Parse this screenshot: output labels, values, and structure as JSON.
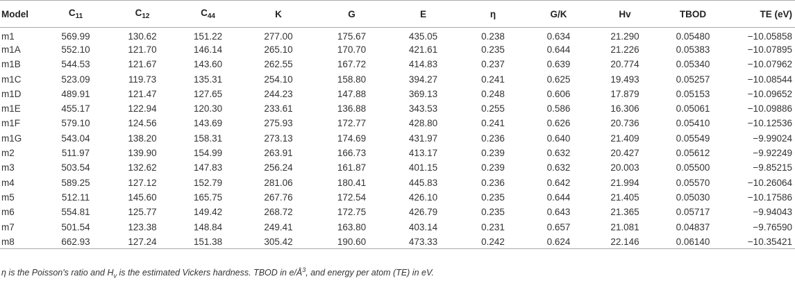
{
  "table": {
    "headers": [
      {
        "main": "Model",
        "sub": ""
      },
      {
        "main": "C",
        "sub": "11"
      },
      {
        "main": "C",
        "sub": "12"
      },
      {
        "main": "C",
        "sub": "44"
      },
      {
        "main": "K",
        "sub": ""
      },
      {
        "main": "G",
        "sub": ""
      },
      {
        "main": "E",
        "sub": ""
      },
      {
        "main": "η",
        "sub": ""
      },
      {
        "main": "G/K",
        "sub": ""
      },
      {
        "main": "Hv",
        "sub": ""
      },
      {
        "main": "TBOD",
        "sub": ""
      },
      {
        "main": "TE (eV)",
        "sub": ""
      }
    ],
    "rows": [
      [
        "m1",
        "569.99",
        "130.62",
        "151.22",
        "277.00",
        "175.67",
        "435.05",
        "0.238",
        "0.634",
        "21.290",
        "0.05480",
        "−10.05858"
      ],
      [
        "m1A",
        "552.10",
        "121.70",
        "146.14",
        "265.10",
        "170.70",
        "421.61",
        "0.235",
        "0.644",
        "21.226",
        "0.05383",
        "−10.07895"
      ],
      [
        "m1B",
        "544.53",
        "121.67",
        "143.60",
        "262.55",
        "167.72",
        "414.83",
        "0.237",
        "0.639",
        "20.774",
        "0.05340",
        "−10.07962"
      ],
      [
        "m1C",
        "523.09",
        "119.73",
        "135.31",
        "254.10",
        "158.80",
        "394.27",
        "0.241",
        "0.625",
        "19.493",
        "0.05257",
        "−10.08544"
      ],
      [
        "m1D",
        "489.91",
        "121.47",
        "127.65",
        "244.23",
        "147.88",
        "369.13",
        "0.248",
        "0.606",
        "17.879",
        "0.05153",
        "−10.09652"
      ],
      [
        "m1E",
        "455.17",
        "122.94",
        "120.30",
        "233.61",
        "136.88",
        "343.53",
        "0.255",
        "0.586",
        "16.306",
        "0.05061",
        "−10.09886"
      ],
      [
        "m1F",
        "579.10",
        "124.56",
        "143.69",
        "275.93",
        "172.77",
        "428.80",
        "0.241",
        "0.626",
        "20.736",
        "0.05410",
        "−10.12536"
      ],
      [
        "m1G",
        "543.04",
        "138.20",
        "158.31",
        "273.13",
        "174.69",
        "431.97",
        "0.236",
        "0.640",
        "21.409",
        "0.05549",
        "−9.99024"
      ],
      [
        "m2",
        "511.97",
        "139.90",
        "154.99",
        "263.91",
        "166.73",
        "413.17",
        "0.239",
        "0.632",
        "20.427",
        "0.05612",
        "−9.92249"
      ],
      [
        "m3",
        "503.54",
        "132.62",
        "147.83",
        "256.24",
        "161.87",
        "401.15",
        "0.239",
        "0.632",
        "20.003",
        "0.05500",
        "−9.85215"
      ],
      [
        "m4",
        "589.25",
        "127.12",
        "152.79",
        "281.06",
        "180.41",
        "445.83",
        "0.236",
        "0.642",
        "21.994",
        "0.05570",
        "−10.26064"
      ],
      [
        "m5",
        "512.11",
        "145.60",
        "165.75",
        "267.76",
        "172.54",
        "426.10",
        "0.235",
        "0.644",
        "21.405",
        "0.05030",
        "−10.17586"
      ],
      [
        "m6",
        "554.81",
        "125.77",
        "149.42",
        "268.72",
        "172.75",
        "426.79",
        "0.235",
        "0.643",
        "21.365",
        "0.05717",
        "−9.94043"
      ],
      [
        "m7",
        "501.54",
        "123.38",
        "148.84",
        "249.41",
        "163.80",
        "403.14",
        "0.231",
        "0.657",
        "21.081",
        "0.04837",
        "−9.76590"
      ],
      [
        "m8",
        "662.93",
        "127.24",
        "151.38",
        "305.42",
        "190.60",
        "473.33",
        "0.242",
        "0.624",
        "22.146",
        "0.06140",
        "−10.35421"
      ]
    ]
  },
  "note": {
    "part1": "η is the Poisson's ratio and H",
    "part1_sub": "v",
    "part2": " is the estimated Vickers hardness. TBOD in e/Å",
    "part2_sup": "3",
    "part3": ", and energy per atom (TE) in eV."
  }
}
